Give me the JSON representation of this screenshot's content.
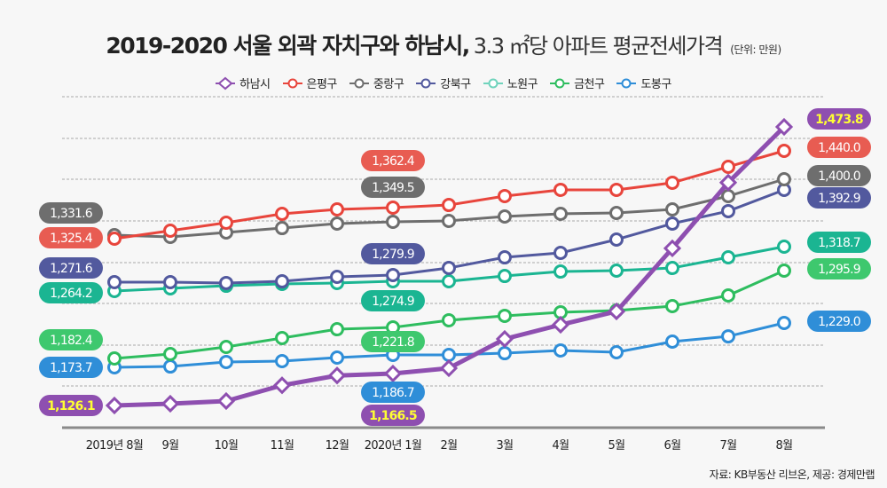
{
  "title": {
    "bold": "2019-2020 서울 외곽 자치구와 하남시,",
    "light": "3.3 ㎡당 아파트 평균전세가격",
    "unit": "(단위: 만원)"
  },
  "source": "자료: KB부동산 리브온, 제공: 경제만랩",
  "chart_data": {
    "type": "line",
    "title": "2019-2020 서울 외곽 자치구와 하남시, 3.3 ㎡당 아파트 평균전세가격",
    "unit": "만원",
    "xlabel": "",
    "ylabel": "",
    "grid": true,
    "legend_position": "top-center",
    "categories": [
      "2019년 8월",
      "9월",
      "10월",
      "11월",
      "12월",
      "2020년 1월",
      "2월",
      "3월",
      "4월",
      "5월",
      "6월",
      "7월",
      "8월"
    ],
    "series": [
      {
        "name": "하남시",
        "color": "#8e4fb0",
        "marker": "diamond",
        "label_text_color": "#ffff33",
        "values": [
          1126.1,
          1128.3,
          1131.7,
          1151.6,
          1164.0,
          1166.5,
          1173.1,
          1209.6,
          1227.3,
          1243.9,
          1322.5,
          1404.4,
          1473.8
        ],
        "labels": {
          "start": "1,126.1",
          "mid": "1,166.5",
          "end": "1,473.8"
        }
      },
      {
        "name": "은평구",
        "color": "#e8453c",
        "label_color": "#e85c52",
        "marker": "circle",
        "label_text_color": "#ffffff",
        "values": [
          1325.4,
          1334.9,
          1344.4,
          1355.0,
          1360.3,
          1362.4,
          1366.0,
          1378.2,
          1386.7,
          1386.7,
          1396.4,
          1418.2,
          1440.0
        ],
        "labels": {
          "start": "1,325.4",
          "mid": "1,362.4",
          "end": "1,440.0"
        }
      },
      {
        "name": "중랑구",
        "color": "#6e6e6e",
        "marker": "circle",
        "label_text_color": "#ffffff",
        "values": [
          1331.6,
          1329.2,
          1335.2,
          1341.1,
          1347.1,
          1349.5,
          1350.6,
          1355.8,
          1359.0,
          1360.0,
          1364.2,
          1380.0,
          1400.0
        ],
        "labels": {
          "start": "1,331.6",
          "mid": "1,349.5",
          "end": "1,400.0"
        }
      },
      {
        "name": "강북구",
        "color": "#52599e",
        "marker": "circle",
        "label_text_color": "#ffffff",
        "values": [
          1271.6,
          1271.6,
          1270.6,
          1272.6,
          1277.8,
          1279.9,
          1289.3,
          1303.4,
          1309.3,
          1327.0,
          1348.2,
          1364.7,
          1392.9
        ],
        "labels": {
          "start": "1,271.6",
          "mid": "1,279.9",
          "end": "1,392.9"
        }
      },
      {
        "name": "노원구",
        "color": "#1bb592",
        "legend_color": "#6fd3bc",
        "marker": "circle",
        "label_text_color": "#ffffff",
        "values": [
          1264.2,
          1267.1,
          1270.0,
          1272.0,
          1273.0,
          1274.9,
          1274.9,
          1281.6,
          1287.2,
          1288.4,
          1291.7,
          1305.2,
          1318.7
        ],
        "labels": {
          "start": "1,264.2",
          "mid": "1,274.9",
          "end": "1,318.7"
        }
      },
      {
        "name": "금천구",
        "color": "#2ebd5f",
        "label_color": "#3ec86e",
        "marker": "circle",
        "label_text_color": "#ffffff",
        "values": [
          1182.4,
          1188.0,
          1197.0,
          1208.3,
          1219.5,
          1221.8,
          1231.1,
          1236.9,
          1241.5,
          1243.8,
          1249.6,
          1263.5,
          1295.9
        ],
        "labels": {
          "start": "1,182.4",
          "mid": "1,221.8",
          "end": "1,295.9"
        }
      },
      {
        "name": "도봉구",
        "color": "#2f8ed8",
        "marker": "circle",
        "label_text_color": "#ffffff",
        "values": [
          1173.7,
          1174.6,
          1179.3,
          1180.2,
          1183.9,
          1186.7,
          1186.7,
          1189.0,
          1192.6,
          1190.2,
          1204.3,
          1211.3,
          1229.0
        ],
        "labels": {
          "start": "1,173.7",
          "mid": "1,186.7",
          "end": "1,229.0"
        }
      }
    ]
  }
}
